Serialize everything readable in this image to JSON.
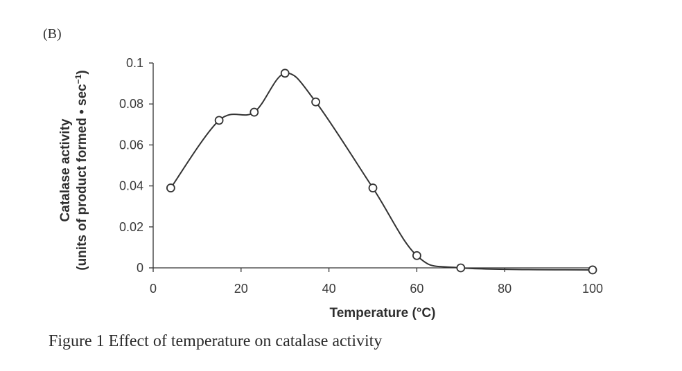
{
  "panel_label": "(B)",
  "caption": "Figure 1  Effect of temperature on catalase activity",
  "chart_data": {
    "type": "line",
    "title": "",
    "xlabel": "Temperature (°C)",
    "ylabel_line1": "Catalase activity",
    "ylabel_line2_main": "(units of product formed • sec",
    "ylabel_line2_sup": "−1",
    "ylabel_line2_end": ")",
    "xlim": [
      0,
      100
    ],
    "ylim": [
      0,
      0.1
    ],
    "x_ticks": [
      0,
      20,
      40,
      60,
      80,
      100
    ],
    "x_tick_labels": [
      "0",
      "20",
      "40",
      "60",
      "80",
      "100"
    ],
    "y_ticks": [
      0,
      0.02,
      0.04,
      0.06,
      0.08,
      0.1
    ],
    "y_tick_labels": [
      "0",
      "0.02",
      "0.04",
      "0.06",
      "0.08",
      "0.1"
    ],
    "grid": false,
    "series": [
      {
        "name": "Catalase activity",
        "marker": "open-circle",
        "x": [
          4,
          15,
          23,
          30,
          37,
          50,
          60,
          70,
          100
        ],
        "y": [
          0.039,
          0.072,
          0.076,
          0.095,
          0.081,
          0.039,
          0.006,
          0.0,
          -0.001
        ]
      }
    ]
  }
}
